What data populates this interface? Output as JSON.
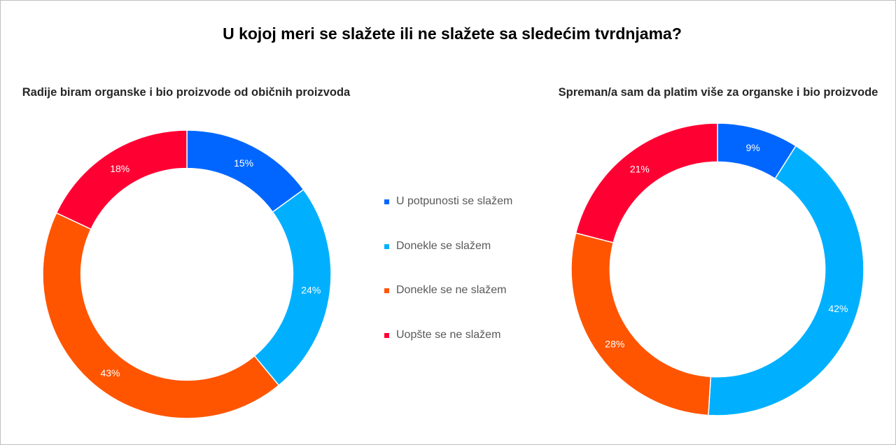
{
  "main_title": "U kojoj meri se slažete ili ne slažete sa sledećim tvrdnjama?",
  "legend": [
    {
      "label": "U potpunosti se slažem",
      "color": "#0066ff"
    },
    {
      "label": "Donekle se slažem",
      "color": "#00b0ff"
    },
    {
      "label": "Donekle se ne slažem",
      "color": "#ff5500"
    },
    {
      "label": "Uopšte se ne slažem",
      "color": "#ff0033"
    }
  ],
  "chart_data": [
    {
      "type": "pie",
      "title": "Radije biram organske i bio proizvode od običnih proizvoda",
      "categories": [
        "U potpunosti se slažem",
        "Donekle se slažem",
        "Donekle se ne slažem",
        "Uopšte se ne slažem"
      ],
      "values": [
        15,
        24,
        43,
        18
      ],
      "labels": [
        "15%",
        "24%",
        "43%",
        "18%"
      ],
      "colors": [
        "#0066ff",
        "#00b0ff",
        "#ff5500",
        "#ff0033"
      ],
      "legend_position": "center"
    },
    {
      "type": "pie",
      "title": "Spreman/a sam da platim više za organske i bio proizvode",
      "categories": [
        "U potpunosti se slažem",
        "Donekle se slažem",
        "Donekle se ne slažem",
        "Uopšte se ne slažem"
      ],
      "values": [
        9,
        42,
        28,
        21
      ],
      "labels": [
        "9%",
        "42%",
        "28%",
        "21%"
      ],
      "colors": [
        "#0066ff",
        "#00b0ff",
        "#ff5500",
        "#ff0033"
      ],
      "legend_position": "center"
    }
  ]
}
